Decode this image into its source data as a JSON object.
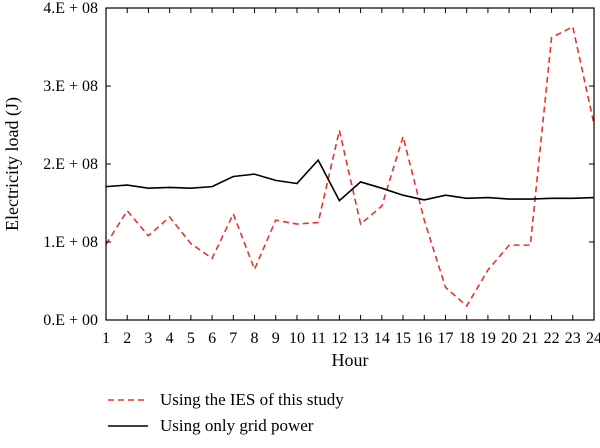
{
  "chart_data": {
    "type": "line",
    "title": "",
    "xlabel": "Hour",
    "ylabel": "Electricity load (J)",
    "categories": [
      1,
      2,
      3,
      4,
      5,
      6,
      7,
      8,
      9,
      10,
      11,
      12,
      13,
      14,
      15,
      16,
      17,
      18,
      19,
      20,
      21,
      22,
      23,
      24
    ],
    "xlim": [
      1,
      24
    ],
    "ylim": [
      0,
      400000000
    ],
    "y_ticks": [
      {
        "value": 0,
        "label": "0.E + 00"
      },
      {
        "value": 100000000,
        "label": "1.E + 08"
      },
      {
        "value": 200000000,
        "label": "2.E + 08"
      },
      {
        "value": 300000000,
        "label": "3.E + 08"
      },
      {
        "value": 400000000,
        "label": "4.E + 08"
      }
    ],
    "grid": false,
    "legend_position": "bottom",
    "series": [
      {
        "name": "Using the IES of this study",
        "color": "#e8322f",
        "style": "dashed",
        "values": [
          97000000,
          140000000,
          108000000,
          132000000,
          98000000,
          79000000,
          136000000,
          65000000,
          128000000,
          123000000,
          125000000,
          243000000,
          123000000,
          146000000,
          235000000,
          128000000,
          42000000,
          18000000,
          64000000,
          96000000,
          96000000,
          362000000,
          376000000,
          251000000
        ]
      },
      {
        "name": "Using only grid power",
        "color": "#000000",
        "style": "solid",
        "values": [
          171000000,
          173000000,
          169000000,
          170000000,
          169000000,
          171000000,
          184000000,
          187000000,
          179000000,
          175000000,
          205000000,
          153000000,
          177000000,
          169000000,
          160000000,
          154000000,
          160000000,
          156000000,
          157000000,
          155000000,
          155000000,
          156000000,
          156000000,
          157000000
        ]
      }
    ]
  }
}
